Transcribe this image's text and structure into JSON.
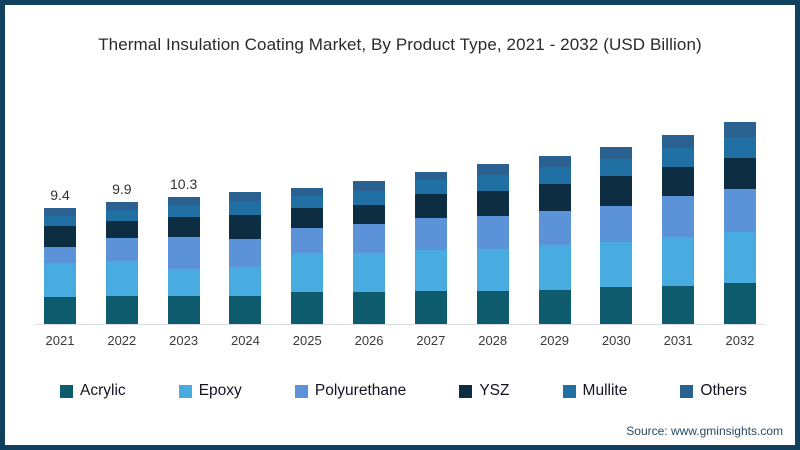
{
  "title": "Thermal Insulation Coating Market, By Product Type, 2021 - 2032 (USD Billion)",
  "source": "Source: www.gminsights.com",
  "colors": {
    "frame_border": "#11405f",
    "axis_line": "#d9dce1"
  },
  "chart_data": {
    "type": "bar",
    "stacked": true,
    "title": "Thermal Insulation Coating Market, By Product Type, 2021 - 2032 (USD Billion)",
    "xlabel": "",
    "ylabel": "USD Billion",
    "ylim": [
      0,
      17.5
    ],
    "grid": false,
    "legend_position": "bottom",
    "categories": [
      "2021",
      "2022",
      "2023",
      "2024",
      "2025",
      "2026",
      "2027",
      "2028",
      "2029",
      "2030",
      "2031",
      "2032"
    ],
    "series": [
      {
        "name": "Acrylic",
        "color": "#0f5b6e",
        "values": [
          2.2,
          2.3,
          2.3,
          2.3,
          2.6,
          2.6,
          2.7,
          2.7,
          2.8,
          3.0,
          3.1,
          3.3
        ]
      },
      {
        "name": "Epoxy",
        "color": "#49ace0",
        "values": [
          2.8,
          2.8,
          2.2,
          2.3,
          3.2,
          3.2,
          3.3,
          3.4,
          3.6,
          3.7,
          4.0,
          4.2
        ]
      },
      {
        "name": "Polyurethane",
        "color": "#5b92d8",
        "values": [
          1.3,
          1.9,
          2.6,
          2.3,
          2.0,
          2.3,
          2.6,
          2.7,
          2.8,
          2.9,
          3.3,
          3.5
        ]
      },
      {
        "name": "YSZ",
        "color": "#0c2d42",
        "values": [
          1.7,
          1.4,
          1.6,
          2.0,
          1.6,
          1.6,
          2.0,
          2.0,
          2.2,
          2.4,
          2.4,
          2.5
        ]
      },
      {
        "name": "Mullite",
        "color": "#2170a3",
        "values": [
          0.8,
          0.9,
          1.0,
          1.1,
          1.0,
          1.1,
          1.1,
          1.3,
          1.4,
          1.4,
          1.5,
          1.7
        ]
      },
      {
        "name": "Others",
        "color": "#2b6191",
        "values": [
          0.6,
          0.6,
          0.6,
          0.7,
          0.7,
          0.8,
          0.7,
          0.9,
          0.9,
          1.0,
          1.1,
          1.2
        ]
      }
    ],
    "totals": [
      9.4,
      9.9,
      10.3,
      10.7,
      11.1,
      11.6,
      12.4,
      13.0,
      13.7,
      14.4,
      15.4,
      16.4
    ],
    "value_labels": [
      "9.4",
      "9.9",
      "10.3",
      "",
      "",
      "",
      "",
      "",
      "",
      "",
      "",
      ""
    ]
  }
}
